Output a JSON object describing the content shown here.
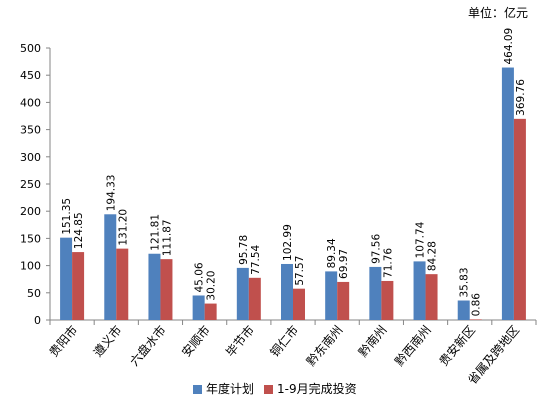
{
  "unit_label": "单位：亿元",
  "chart_data": {
    "type": "bar",
    "title": "",
    "xlabel": "",
    "ylabel": "",
    "ylim": [
      0,
      500
    ],
    "y_ticks": [
      0,
      50,
      100,
      150,
      200,
      250,
      300,
      350,
      400,
      450,
      500
    ],
    "grid": false,
    "legend_position": "bottom",
    "categories": [
      "贵阳市",
      "遵义市",
      "六盘水市",
      "安顺市",
      "毕节市",
      "铜仁市",
      "黔东南州",
      "黔南州",
      "黔西南州",
      "贵安新区",
      "省属及跨地区"
    ],
    "series": [
      {
        "name": "年度计划",
        "color": "#4F81BD",
        "values": [
          151.35,
          194.33,
          121.81,
          45.06,
          95.78,
          102.99,
          89.34,
          97.56,
          107.74,
          35.83,
          464.09
        ],
        "labels": [
          "151.35",
          "194.33",
          "121.81",
          "45.06",
          "95.78",
          "102.99",
          "89.34",
          "97.56",
          "107.74",
          "35.83",
          "464.09"
        ]
      },
      {
        "name": "1-9月完成投资",
        "color": "#C0504D",
        "values": [
          124.85,
          131.2,
          111.87,
          30.2,
          77.54,
          57.57,
          69.97,
          71.76,
          84.28,
          0.86,
          369.76
        ],
        "labels": [
          "124.85",
          "131.20",
          "111.87",
          "30.20",
          "77.54",
          "57.57",
          "69.97",
          "71.76",
          "84.28",
          "0.86",
          "369.76"
        ]
      }
    ]
  }
}
